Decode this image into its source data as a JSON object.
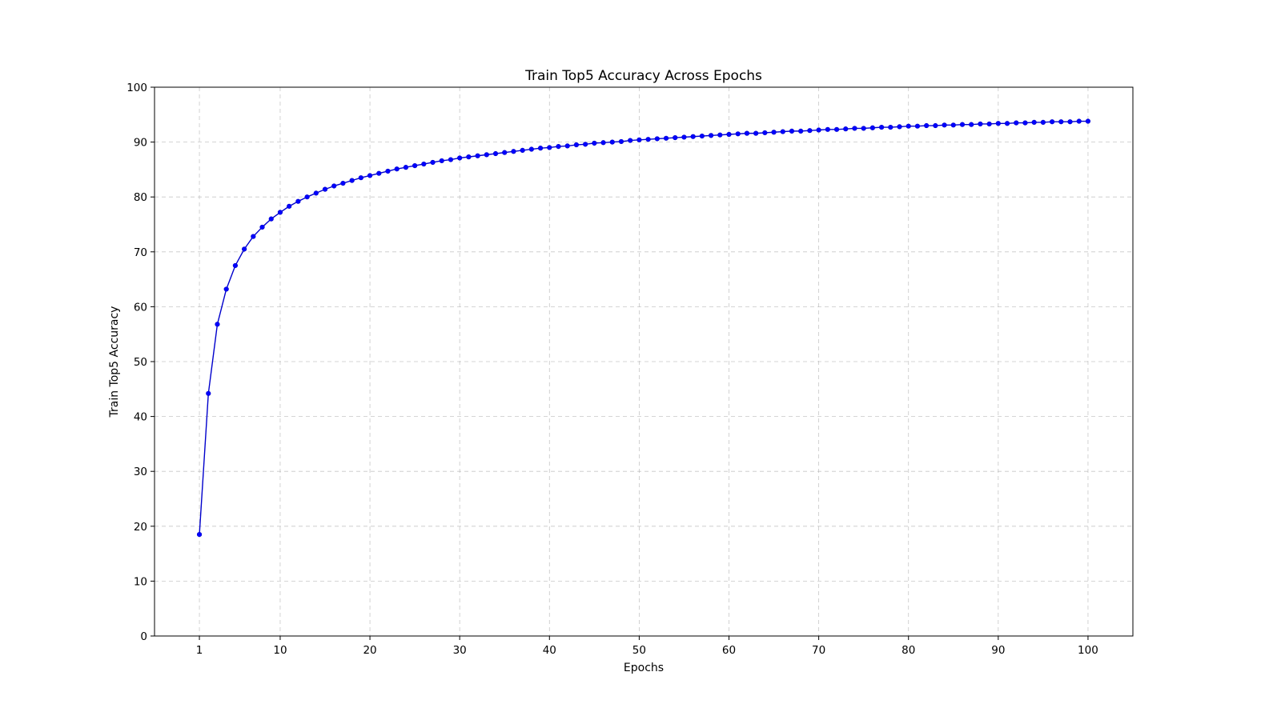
{
  "chart_data": {
    "type": "line",
    "title": "Train Top5 Accuracy Across Epochs",
    "xlabel": "Epochs",
    "ylabel": "Train Top5 Accuracy",
    "xlim": [
      -4,
      105
    ],
    "ylim": [
      0,
      100
    ],
    "xticks": [
      1,
      10,
      20,
      30,
      40,
      50,
      60,
      70,
      80,
      90,
      100
    ],
    "yticks": [
      0,
      10,
      20,
      30,
      40,
      50,
      60,
      70,
      80,
      90,
      100
    ],
    "grid": true,
    "line_color": "#0000cc",
    "marker_color": "#0000ff",
    "series": [
      {
        "marker": "o",
        "x": [
          1,
          2,
          3,
          4,
          5,
          6,
          7,
          8,
          9,
          10,
          11,
          12,
          13,
          14,
          15,
          16,
          17,
          18,
          19,
          20,
          21,
          22,
          23,
          24,
          25,
          26,
          27,
          28,
          29,
          30,
          31,
          32,
          33,
          34,
          35,
          36,
          37,
          38,
          39,
          40,
          41,
          42,
          43,
          44,
          45,
          46,
          47,
          48,
          49,
          50,
          51,
          52,
          53,
          54,
          55,
          56,
          57,
          58,
          59,
          60,
          61,
          62,
          63,
          64,
          65,
          66,
          67,
          68,
          69,
          70,
          71,
          72,
          73,
          74,
          75,
          76,
          77,
          78,
          79,
          80,
          81,
          82,
          83,
          84,
          85,
          86,
          87,
          88,
          89,
          90,
          91,
          92,
          93,
          94,
          95,
          96,
          97,
          98,
          99,
          100
        ],
        "values": [
          18.5,
          44.2,
          56.8,
          63.2,
          67.5,
          70.5,
          72.8,
          74.5,
          76.0,
          77.2,
          78.3,
          79.2,
          80.0,
          80.7,
          81.4,
          82.0,
          82.5,
          83.0,
          83.5,
          83.9,
          84.3,
          84.7,
          85.1,
          85.4,
          85.7,
          86.0,
          86.3,
          86.6,
          86.8,
          87.1,
          87.3,
          87.5,
          87.7,
          87.9,
          88.1,
          88.3,
          88.5,
          88.7,
          88.9,
          89.0,
          89.2,
          89.3,
          89.5,
          89.6,
          89.8,
          89.9,
          90.0,
          90.1,
          90.3,
          90.4,
          90.5,
          90.6,
          90.7,
          90.8,
          90.9,
          91.0,
          91.1,
          91.2,
          91.3,
          91.4,
          91.5,
          91.6,
          91.6,
          91.7,
          91.8,
          91.9,
          92.0,
          92.0,
          92.1,
          92.2,
          92.3,
          92.3,
          92.4,
          92.5,
          92.5,
          92.6,
          92.7,
          92.7,
          92.8,
          92.9,
          92.9,
          93.0,
          93.0,
          93.1,
          93.1,
          93.2,
          93.2,
          93.3,
          93.3,
          93.4,
          93.4,
          93.5,
          93.5,
          93.6,
          93.6,
          93.7,
          93.7,
          93.7,
          93.8,
          93.8
        ]
      }
    ]
  }
}
